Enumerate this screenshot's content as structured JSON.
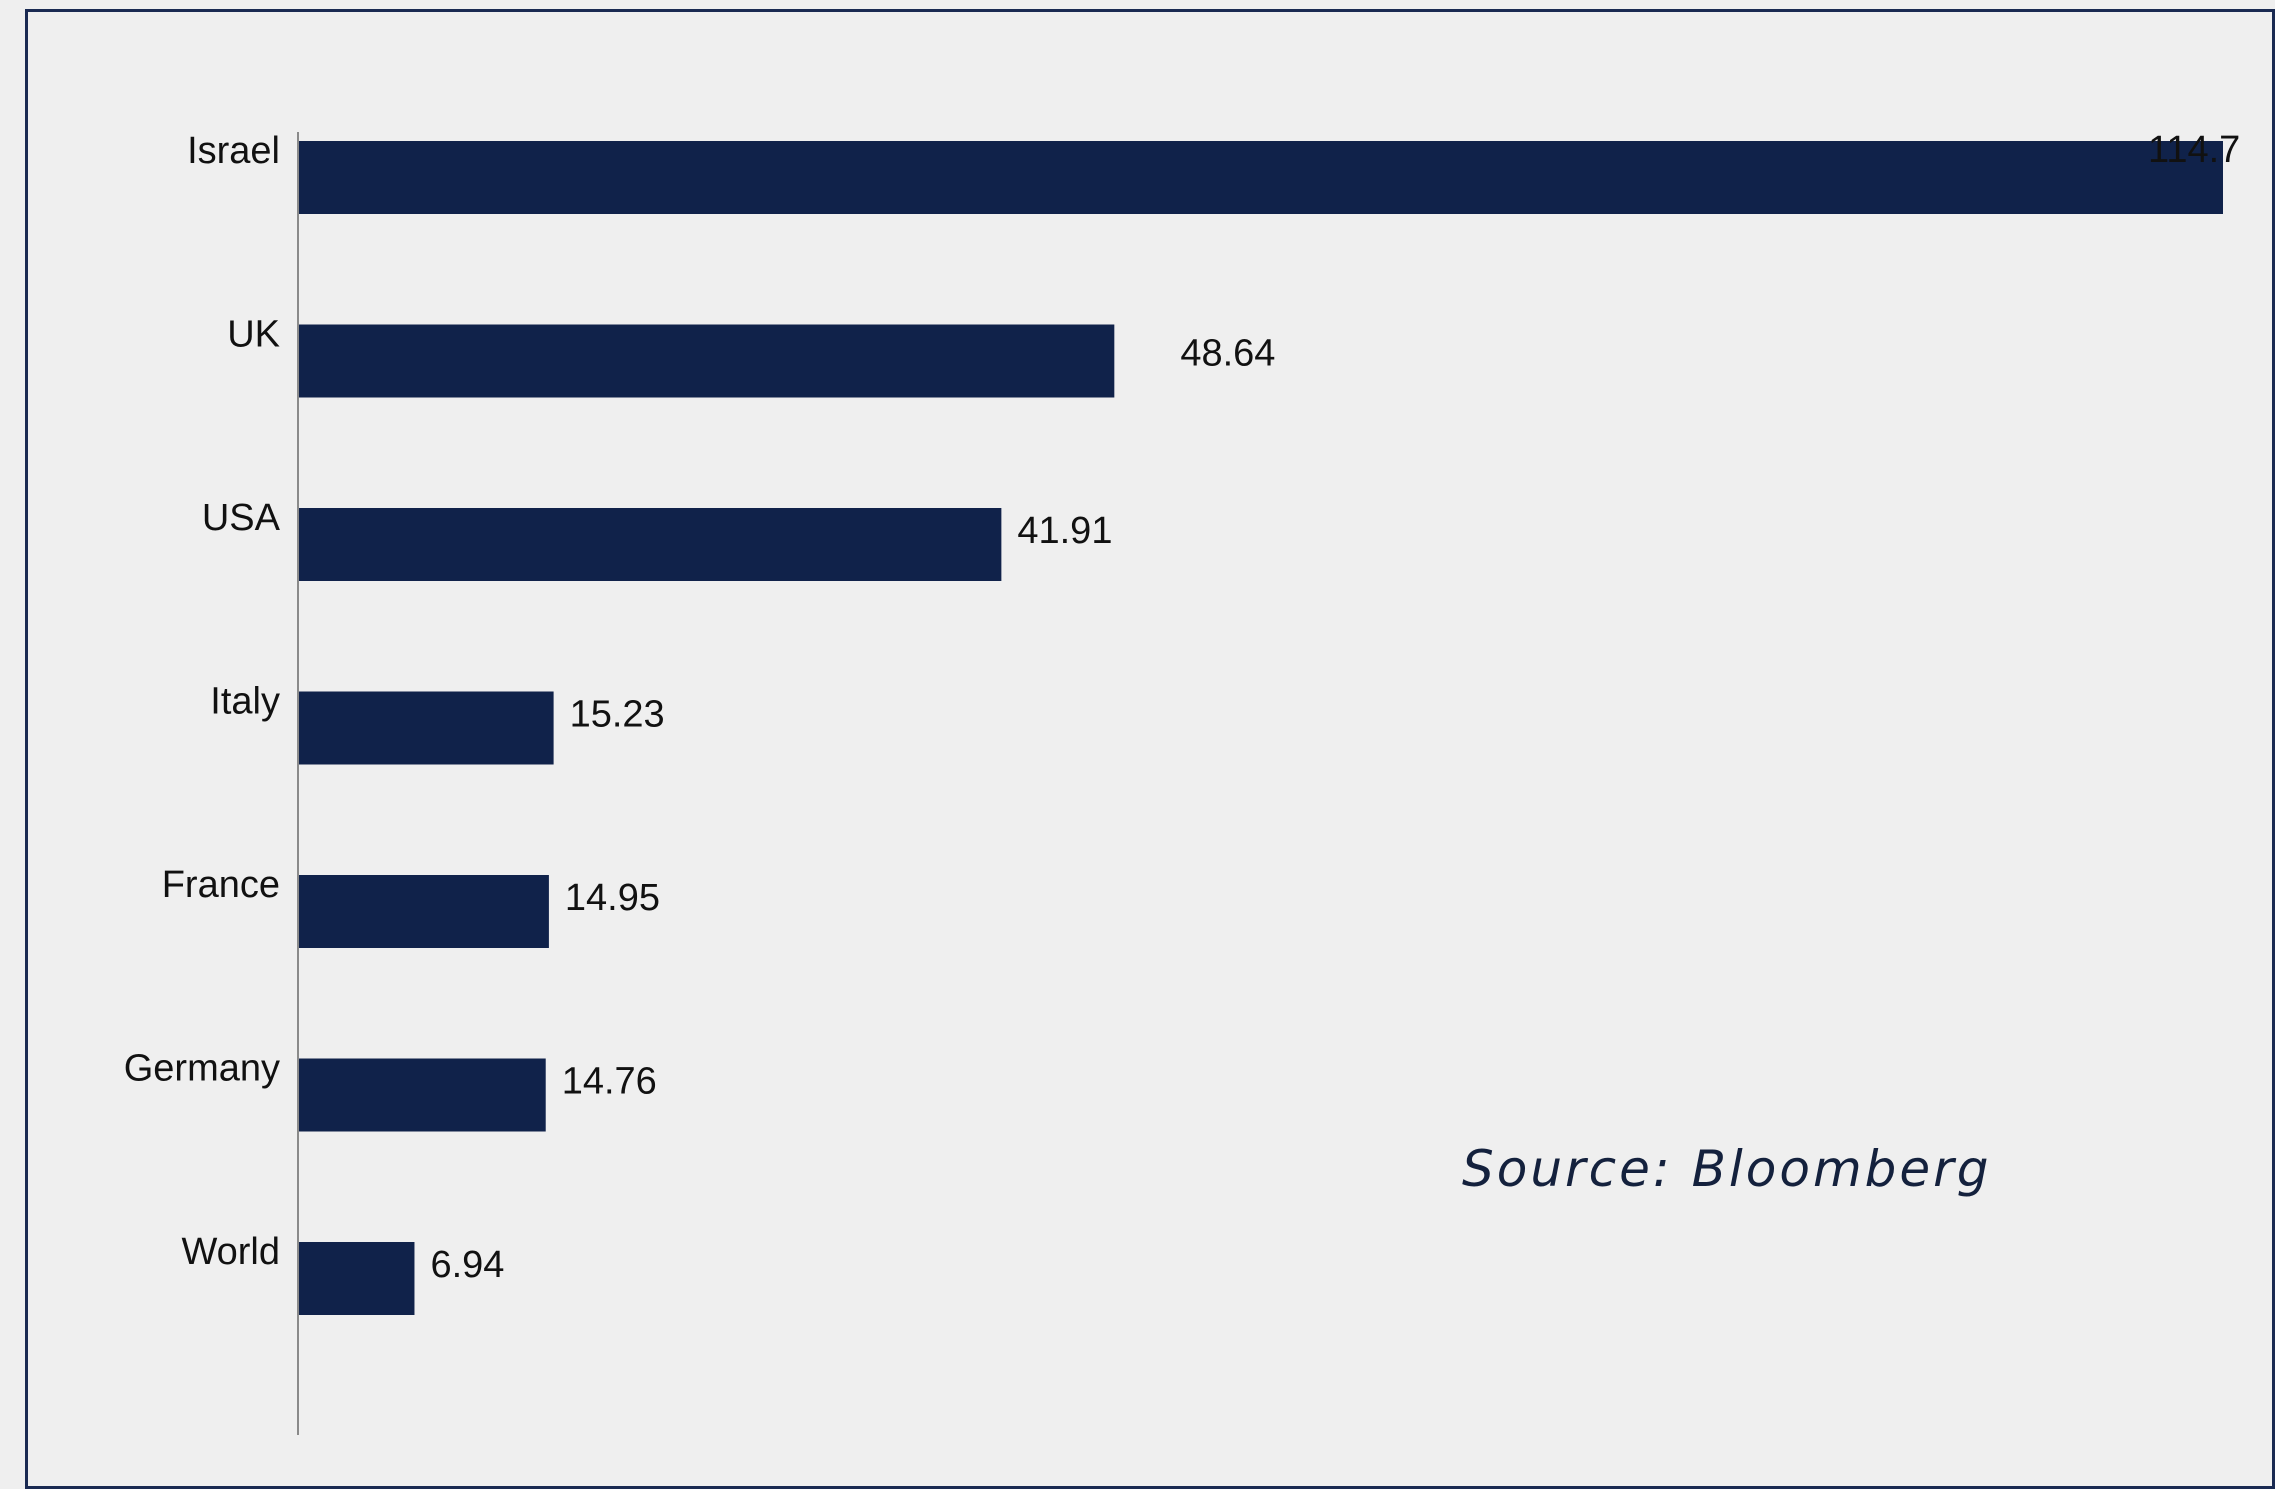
{
  "chart_data": {
    "type": "bar",
    "orientation": "horizontal",
    "categories": [
      "Israel",
      "UK",
      "USA",
      "Italy",
      "France",
      "Germany",
      "World"
    ],
    "values": [
      114.7,
      48.64,
      41.91,
      15.23,
      14.95,
      14.76,
      6.94
    ],
    "value_labels": [
      "114.7",
      "48.64",
      "41.91",
      "15.23",
      "14.95",
      "14.76",
      "6.94"
    ],
    "bar_color": "#10224a",
    "xlim": [
      0,
      114.7
    ],
    "grid": false,
    "title": "",
    "xlabel": "",
    "ylabel": ""
  },
  "annotations": {
    "source": "Source: Bloomberg"
  }
}
